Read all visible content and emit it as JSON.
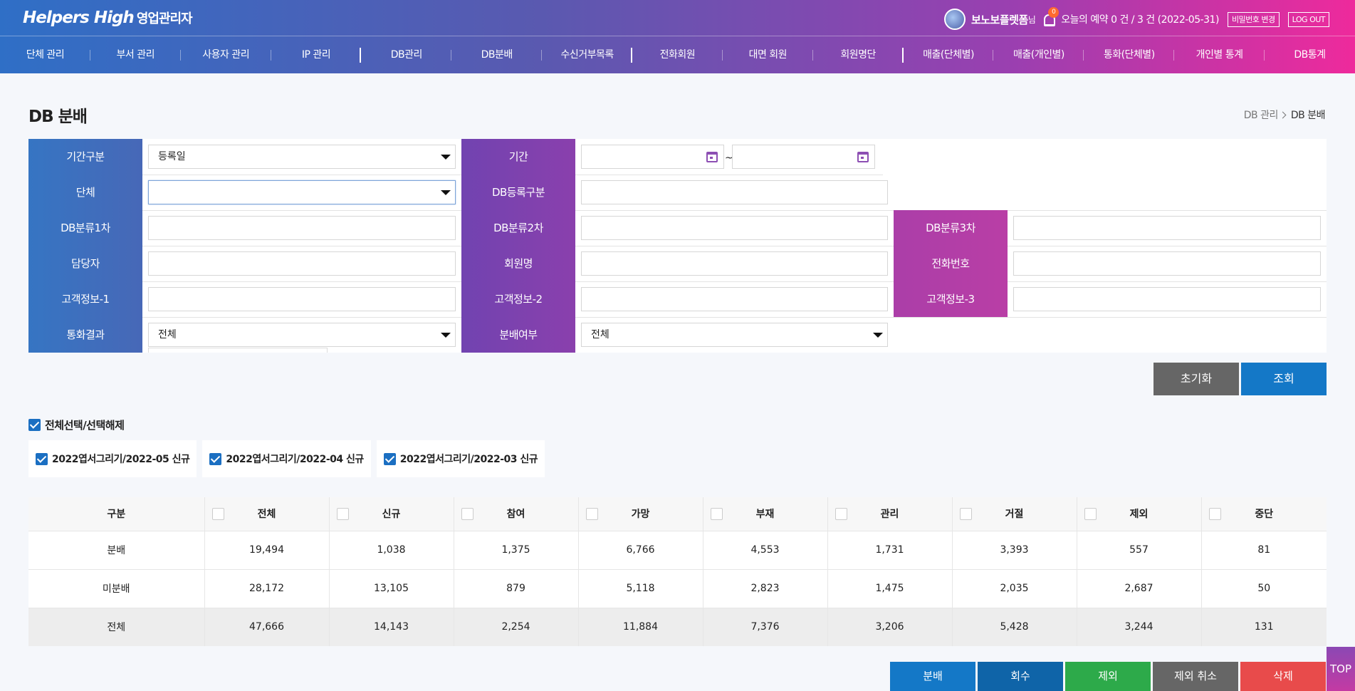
{
  "header": {
    "logo": "Helpers High",
    "logo_sub": "영업관리자",
    "user_name": "보노보플렛폼",
    "user_suffix": "님",
    "bell_count": "0",
    "reservation_text": "오늘의 예약 0 건 / 3 건 (2022-05-31)",
    "password_button": "비밀번호 변경",
    "logout_button": "LOG OUT"
  },
  "gnb": [
    "단체 관리",
    "부서 관리",
    "사용자 관리",
    "IP 관리",
    "DB관리",
    "DB분배",
    "수신거부목록",
    "전화회원",
    "대면 회원",
    "회원명단",
    "매출(단체별)",
    "매출(개인별)",
    "통화(단체별)",
    "개인별 통계",
    "DB통계"
  ],
  "page": {
    "title": "DB 분배",
    "breadcrumb": [
      "DB 관리",
      "DB 분배"
    ]
  },
  "search": {
    "labels": {
      "period_type": "기간구분",
      "period": "기간",
      "group": "단체",
      "db_reg_type": "DB등록구분",
      "db_cat1": "DB분류1차",
      "db_cat2": "DB분류2차",
      "db_cat3": "DB분류3차",
      "manager": "담당자",
      "member_name": "회원명",
      "phone": "전화번호",
      "customer1": "고객정보-1",
      "customer2": "고객정보-2",
      "customer3": "고객정보-3",
      "call_result": "통화결과",
      "distributed": "분배여부"
    },
    "values": {
      "period_type": "등록일",
      "date_sep": "~",
      "call_result": "전체",
      "distributed": "전체"
    },
    "reset_button": "초기화",
    "search_button": "조회"
  },
  "select_all": "전체선택/선택해제",
  "chips": [
    "2022엽서그리기/2022-05 신규",
    "2022엽서그리기/2022-04 신규",
    "2022엽서그리기/2022-03 신규"
  ],
  "stats": {
    "headers": [
      "구분",
      "전체",
      "신규",
      "참여",
      "가망",
      "부재",
      "관리",
      "거절",
      "제외",
      "중단"
    ],
    "rows": [
      [
        "분배",
        "19,494",
        "1,038",
        "1,375",
        "6,766",
        "4,553",
        "1,731",
        "3,393",
        "557",
        "81"
      ],
      [
        "미분배",
        "28,172",
        "13,105",
        "879",
        "5,118",
        "2,823",
        "1,475",
        "2,035",
        "2,687",
        "50"
      ],
      [
        "전체",
        "47,666",
        "14,143",
        "2,254",
        "11,884",
        "7,376",
        "3,206",
        "5,428",
        "3,244",
        "131"
      ]
    ]
  },
  "actions": [
    {
      "label": "분배",
      "color": "#1478c7"
    },
    {
      "label": "회수",
      "color": "#0f64a8"
    },
    {
      "label": "제외",
      "color": "#2daa4a"
    },
    {
      "label": "제외 취소",
      "color": "#666666"
    },
    {
      "label": "삭제",
      "color": "#e84b4b"
    }
  ],
  "top_button": "TOP"
}
